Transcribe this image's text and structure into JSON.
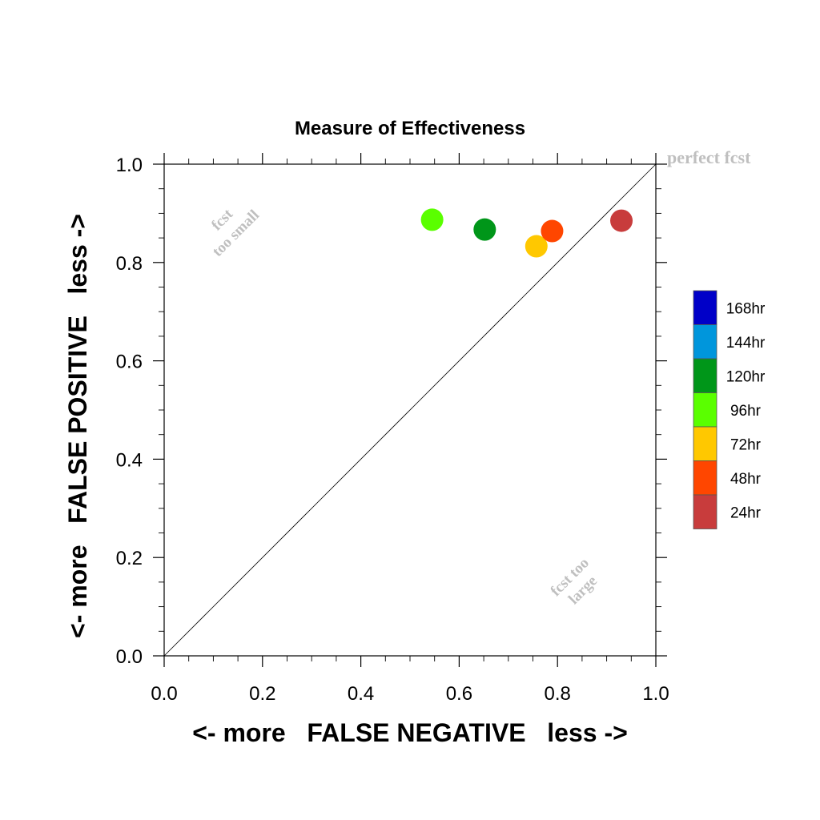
{
  "chart_data": {
    "type": "scatter",
    "title": "Measure of Effectiveness",
    "xlabel": "<- more   FALSE NEGATIVE   less ->",
    "ylabel": "<- more   FALSE POSITIVE   less ->",
    "xlim": [
      0.0,
      1.0
    ],
    "ylim": [
      0.0,
      1.0
    ],
    "x_ticks": [
      "0.0",
      "0.2",
      "0.4",
      "0.6",
      "0.8",
      "1.0"
    ],
    "y_ticks": [
      "0.0",
      "0.2",
      "0.4",
      "0.6",
      "0.8",
      "1.0"
    ],
    "grid": false,
    "diagonal_line": true,
    "annotations": {
      "perfect": "perfect fcst",
      "too_small_line1": "fcst",
      "too_small_line2": "too small",
      "too_large_line1": "fcst too",
      "too_large_line2": "large"
    },
    "legend": {
      "placement": "right",
      "entries": [
        {
          "label": "168hr",
          "color": "#0000c8"
        },
        {
          "label": "144hr",
          "color": "#0096dc"
        },
        {
          "label": "120hr",
          "color": "#009619"
        },
        {
          "label": "96hr",
          "color": "#5aff00"
        },
        {
          "label": "72hr",
          "color": "#ffc800"
        },
        {
          "label": "48hr",
          "color": "#ff4600"
        },
        {
          "label": "24hr",
          "color": "#c83c3c"
        }
      ]
    },
    "points": [
      {
        "x": 0.545,
        "y": 0.887,
        "color": "#5aff00"
      },
      {
        "x": 0.652,
        "y": 0.867,
        "color": "#009619"
      },
      {
        "x": 0.757,
        "y": 0.833,
        "color": "#ffc800"
      },
      {
        "x": 0.789,
        "y": 0.864,
        "color": "#ff4600"
      },
      {
        "x": 0.93,
        "y": 0.885,
        "color": "#c83c3c"
      }
    ]
  }
}
